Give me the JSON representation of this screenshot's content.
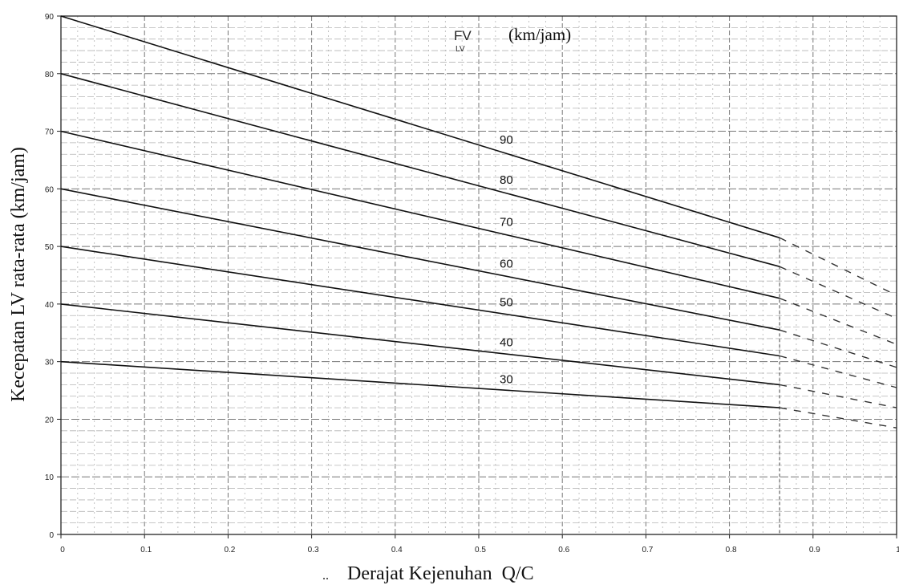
{
  "chart_data": {
    "type": "line",
    "xlabel_prefix": "..",
    "xlabel": "Derajat Kejenuhan  Q/C",
    "ylabel": "Kecepatan LV rata-rata (km/jam)",
    "legend": {
      "main": "FV",
      "sub": "LV",
      "unit": "(km/jam)"
    },
    "xlim": [
      0,
      1
    ],
    "ylim": [
      0,
      90
    ],
    "x_ticks": [
      "0",
      "0.1",
      "0.2",
      "0.3",
      "0.4",
      "0.5",
      "0.6",
      "0.7",
      "0.8",
      "0.9",
      "1"
    ],
    "y_ticks": [
      "0",
      "10",
      "20",
      "30",
      "40",
      "50",
      "60",
      "70",
      "80",
      "90"
    ],
    "grid": true,
    "series": [
      {
        "name": "90",
        "x": [
          0,
          0.86
        ],
        "y": [
          90,
          51.5
        ],
        "extension": {
          "x": [
            0.86,
            1.0
          ],
          "y": [
            51.5,
            41.5
          ]
        }
      },
      {
        "name": "80",
        "x": [
          0,
          0.86
        ],
        "y": [
          80,
          46.5
        ],
        "extension": {
          "x": [
            0.86,
            1.0
          ],
          "y": [
            46.5,
            37.5
          ]
        }
      },
      {
        "name": "70",
        "x": [
          0,
          0.86
        ],
        "y": [
          70,
          41
        ],
        "extension": {
          "x": [
            0.86,
            1.0
          ],
          "y": [
            41,
            33
          ]
        }
      },
      {
        "name": "60",
        "x": [
          0,
          0.86
        ],
        "y": [
          60,
          35.5
        ],
        "extension": {
          "x": [
            0.86,
            1.0
          ],
          "y": [
            35.5,
            29
          ]
        }
      },
      {
        "name": "50",
        "x": [
          0,
          0.86
        ],
        "y": [
          50,
          31
        ],
        "extension": {
          "x": [
            0.86,
            1.0
          ],
          "y": [
            31,
            25.5
          ]
        }
      },
      {
        "name": "40",
        "x": [
          0,
          0.86
        ],
        "y": [
          40,
          26
        ],
        "extension": {
          "x": [
            0.86,
            1.0
          ],
          "y": [
            26,
            22
          ]
        }
      },
      {
        "name": "30",
        "x": [
          0,
          0.86
        ],
        "y": [
          30,
          22
        ],
        "extension": {
          "x": [
            0.86,
            1.0
          ],
          "y": [
            22,
            18.5
          ]
        }
      }
    ]
  }
}
